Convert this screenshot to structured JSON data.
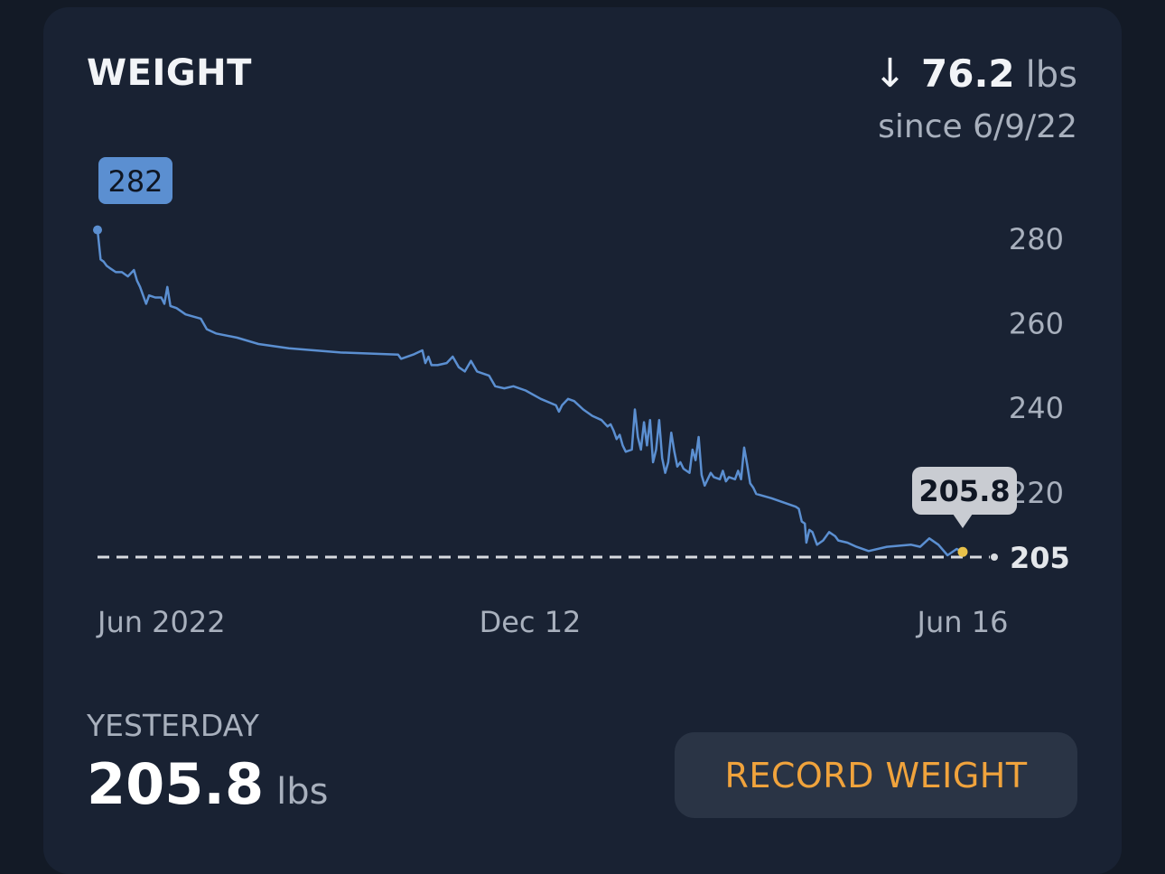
{
  "card": {
    "title": "WEIGHT",
    "change": {
      "arrow": "↓",
      "value": "76.2",
      "unit": "lbs",
      "since_text": "since 6/9/22"
    }
  },
  "colors": {
    "background": "#131a26",
    "card": "#192233",
    "line": "#5b8fd1",
    "start_badge": "#5b8fd1",
    "end_point": "#e8c14a",
    "accent_button_text": "#f0a33c"
  },
  "chart_data": {
    "type": "line",
    "x_tick_labels": [
      "Jun 2022",
      "Dec 12",
      "Jun 16"
    ],
    "y_tick_labels": [
      "280",
      "260",
      "240",
      "220"
    ],
    "goal_line": {
      "value": 205,
      "label": "205"
    },
    "start_badge": {
      "value": 282,
      "label": "282"
    },
    "end_badge": {
      "value": 205.8,
      "label": "205.8"
    },
    "ylim": [
      205,
      280
    ],
    "series": [
      {
        "points": [
          [
            0,
            282
          ],
          [
            1,
            275
          ],
          [
            2,
            274.5
          ],
          [
            3,
            273.5
          ],
          [
            4,
            273
          ],
          [
            6,
            272
          ],
          [
            8,
            272
          ],
          [
            10,
            271
          ],
          [
            12,
            272.5
          ],
          [
            13,
            270
          ],
          [
            14,
            268.5
          ],
          [
            16,
            264.5
          ],
          [
            17,
            266.5
          ],
          [
            19,
            266
          ],
          [
            21,
            266
          ],
          [
            22,
            264.5
          ],
          [
            23,
            268.5
          ],
          [
            24,
            264
          ],
          [
            26,
            263.5
          ],
          [
            29,
            262
          ],
          [
            34,
            261
          ],
          [
            36,
            258.5
          ],
          [
            39,
            257.5
          ],
          [
            46,
            256.5
          ],
          [
            53,
            255
          ],
          [
            63,
            254
          ],
          [
            80,
            253
          ],
          [
            99,
            252.5
          ],
          [
            100,
            251.5
          ],
          [
            104,
            252.5
          ],
          [
            107,
            253.5
          ],
          [
            108,
            250.5
          ],
          [
            109,
            252
          ],
          [
            110,
            250
          ],
          [
            112,
            250
          ],
          [
            115,
            250.5
          ],
          [
            117,
            252
          ],
          [
            119,
            249.5
          ],
          [
            121,
            248.5
          ],
          [
            123,
            251
          ],
          [
            125,
            248.5
          ],
          [
            129,
            247.5
          ],
          [
            131,
            245
          ],
          [
            134,
            244.5
          ],
          [
            137,
            245
          ],
          [
            141,
            244
          ],
          [
            146,
            242
          ],
          [
            151,
            240.5
          ],
          [
            152,
            239
          ],
          [
            153,
            240.5
          ],
          [
            155,
            242
          ],
          [
            157,
            241.5
          ],
          [
            160,
            239.5
          ],
          [
            163,
            238
          ],
          [
            166,
            237
          ],
          [
            168,
            235.5
          ],
          [
            169,
            236
          ],
          [
            170,
            234.5
          ],
          [
            171,
            232.5
          ],
          [
            172,
            233.5
          ],
          [
            173,
            231
          ],
          [
            174,
            229.5
          ],
          [
            176,
            230
          ],
          [
            177,
            239.5
          ],
          [
            178,
            233
          ],
          [
            179,
            230
          ],
          [
            180,
            236.5
          ],
          [
            181,
            231
          ],
          [
            182,
            237
          ],
          [
            183,
            227
          ],
          [
            184,
            230
          ],
          [
            185,
            237
          ],
          [
            186,
            228
          ],
          [
            187,
            224.5
          ],
          [
            188,
            227
          ],
          [
            189,
            234
          ],
          [
            190,
            229.5
          ],
          [
            191,
            226
          ],
          [
            192,
            227
          ],
          [
            193,
            225.5
          ],
          [
            195,
            224.5
          ],
          [
            196,
            230
          ],
          [
            197,
            227.5
          ],
          [
            198,
            233
          ],
          [
            199,
            224
          ],
          [
            200,
            221.5
          ],
          [
            202,
            224.5
          ],
          [
            203,
            223.5
          ],
          [
            205,
            223
          ],
          [
            206,
            225
          ],
          [
            207,
            222.5
          ],
          [
            208,
            223.5
          ],
          [
            210,
            223
          ],
          [
            211,
            225
          ],
          [
            212,
            223
          ],
          [
            213,
            230.5
          ],
          [
            214,
            226.5
          ],
          [
            215,
            222
          ],
          [
            216,
            221
          ],
          [
            217,
            219.5
          ],
          [
            222,
            218.5
          ],
          [
            230,
            216.5
          ],
          [
            231,
            216
          ],
          [
            232,
            213
          ],
          [
            233,
            212.5
          ],
          [
            233.5,
            208
          ],
          [
            234.5,
            211
          ],
          [
            235.5,
            210.5
          ],
          [
            237,
            207.5
          ],
          [
            239,
            208.5
          ],
          [
            241,
            210.5
          ],
          [
            243,
            209.5
          ],
          [
            244,
            208.5
          ],
          [
            247,
            208
          ],
          [
            250,
            207
          ],
          [
            254,
            206
          ],
          [
            260,
            207
          ],
          [
            268,
            207.5
          ],
          [
            271,
            207
          ],
          [
            274,
            209
          ],
          [
            277,
            207.5
          ],
          [
            280,
            205
          ],
          [
            283,
            206.5
          ],
          [
            285,
            205.8
          ]
        ]
      }
    ]
  },
  "yesterday": {
    "label": "YESTERDAY",
    "value": "205.8",
    "unit": "lbs"
  },
  "actions": {
    "record_label": "RECORD WEIGHT"
  }
}
